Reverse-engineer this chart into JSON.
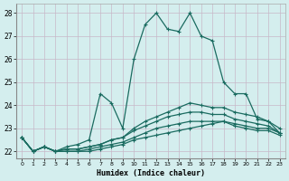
{
  "title": "",
  "xlabel": "Humidex (Indice chaleur)",
  "bg_color": "#d4eeee",
  "line_color": "#1a6b60",
  "grid_color": "#c8b8c8",
  "xlim": [
    -0.5,
    23.5
  ],
  "ylim": [
    21.7,
    28.4
  ],
  "xticks": [
    0,
    1,
    2,
    3,
    4,
    5,
    6,
    7,
    8,
    9,
    10,
    11,
    12,
    13,
    14,
    15,
    16,
    17,
    18,
    19,
    20,
    21,
    22,
    23
  ],
  "yticks": [
    22,
    23,
    24,
    25,
    26,
    27,
    28
  ],
  "lines": [
    [
      22.6,
      22.0,
      22.2,
      22.0,
      22.2,
      22.3,
      22.5,
      24.5,
      24.1,
      23.0,
      26.0,
      27.5,
      28.0,
      27.3,
      27.2,
      28.0,
      27.0,
      26.8,
      25.0,
      24.5,
      24.5,
      23.4,
      23.3,
      22.8
    ],
    [
      22.6,
      22.0,
      22.2,
      22.0,
      22.1,
      22.1,
      22.2,
      22.3,
      22.5,
      22.6,
      23.0,
      23.3,
      23.5,
      23.7,
      23.9,
      24.1,
      24.0,
      23.9,
      23.9,
      23.7,
      23.6,
      23.5,
      23.3,
      23.0
    ],
    [
      22.6,
      22.0,
      22.2,
      22.0,
      22.1,
      22.1,
      22.2,
      22.3,
      22.5,
      22.6,
      22.9,
      23.1,
      23.3,
      23.5,
      23.6,
      23.7,
      23.7,
      23.6,
      23.6,
      23.4,
      23.3,
      23.2,
      23.1,
      22.8
    ],
    [
      22.6,
      22.0,
      22.2,
      22.0,
      22.0,
      22.0,
      22.1,
      22.2,
      22.3,
      22.4,
      22.6,
      22.8,
      23.0,
      23.1,
      23.2,
      23.3,
      23.3,
      23.3,
      23.3,
      23.2,
      23.1,
      23.0,
      23.0,
      22.8
    ],
    [
      22.6,
      22.0,
      22.2,
      22.0,
      22.0,
      22.0,
      22.0,
      22.1,
      22.2,
      22.3,
      22.5,
      22.6,
      22.7,
      22.8,
      22.9,
      23.0,
      23.1,
      23.2,
      23.3,
      23.1,
      23.0,
      22.9,
      22.9,
      22.7
    ]
  ]
}
